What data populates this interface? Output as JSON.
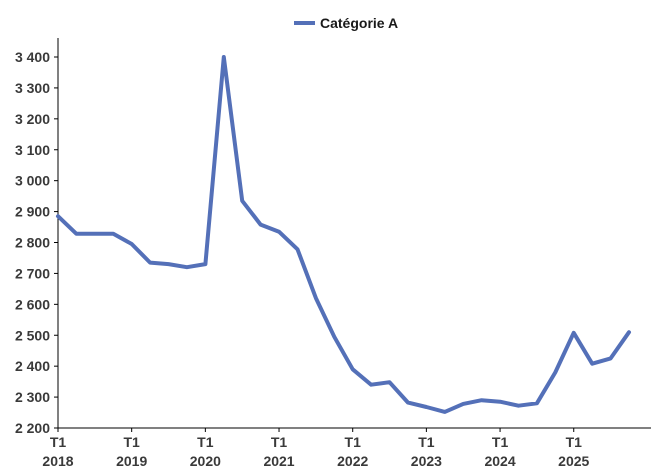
{
  "chart_data": {
    "type": "line",
    "title": "",
    "xlabel": "",
    "ylabel": "",
    "ylim": [
      2200,
      3450
    ],
    "yticks": [
      2200,
      2300,
      2400,
      2500,
      2600,
      2700,
      2800,
      2900,
      3000,
      3100,
      3200,
      3300,
      3400
    ],
    "ytick_labels": [
      "2 200",
      "2 300",
      "2 400",
      "2 500",
      "2 600",
      "2 700",
      "2 800",
      "2 900",
      "3 000",
      "3 100",
      "3 200",
      "3 300",
      "3 400"
    ],
    "x_ticks": [
      {
        "index": 0,
        "quarter": "T1",
        "year": "2018"
      },
      {
        "index": 4,
        "quarter": "T1",
        "year": "2019"
      },
      {
        "index": 8,
        "quarter": "T1",
        "year": "2020"
      },
      {
        "index": 12,
        "quarter": "T1",
        "year": "2021"
      },
      {
        "index": 16,
        "quarter": "T1",
        "year": "2022"
      },
      {
        "index": 20,
        "quarter": "T1",
        "year": "2023"
      },
      {
        "index": 24,
        "quarter": "T1",
        "year": "2024"
      },
      {
        "index": 28,
        "quarter": "T1",
        "year": "2025"
      }
    ],
    "x_count": 32,
    "legend_position": "top-center",
    "grid": false,
    "series": [
      {
        "name": "Catégorie A",
        "color": "#5470b8",
        "values": [
          2885,
          2828,
          2828,
          2828,
          2795,
          2735,
          2730,
          2720,
          2730,
          3400,
          2935,
          2858,
          2835,
          2778,
          2620,
          2495,
          2390,
          2340,
          2348,
          2282,
          2268,
          2252,
          2278,
          2290,
          2285,
          2272,
          2280,
          2380,
          2508,
          2408,
          2425,
          2510
        ]
      }
    ]
  }
}
